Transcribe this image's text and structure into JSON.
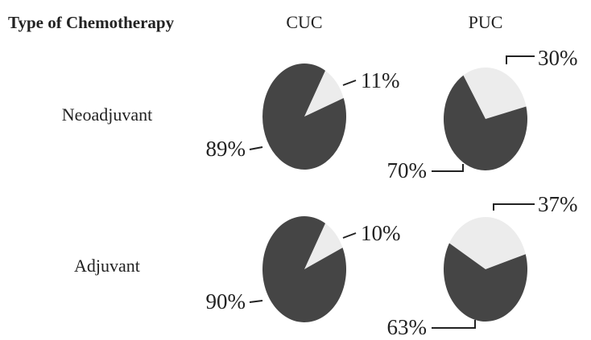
{
  "header": {
    "title": "Type of Chemotherapy",
    "columns": [
      "CUC",
      "PUC"
    ],
    "rows": [
      "Neoadjuvant",
      "Adjuvant"
    ]
  },
  "chart_data": [
    {
      "type": "pie",
      "values": [
        89,
        11
      ],
      "value_labels": [
        "89%",
        "11%"
      ],
      "colors": [
        "#454545",
        "#ececec"
      ]
    },
    {
      "type": "pie",
      "values": [
        70,
        30
      ],
      "value_labels": [
        "70%",
        "30%"
      ],
      "colors": [
        "#454545",
        "#ececec"
      ]
    },
    {
      "type": "pie",
      "values": [
        90,
        10
      ],
      "value_labels": [
        "90%",
        "10%"
      ],
      "colors": [
        "#454545",
        "#ececec"
      ]
    },
    {
      "type": "pie",
      "values": [
        63,
        37
      ],
      "value_labels": [
        "63%",
        "37%"
      ],
      "colors": [
        "#454545",
        "#ececec"
      ]
    }
  ]
}
